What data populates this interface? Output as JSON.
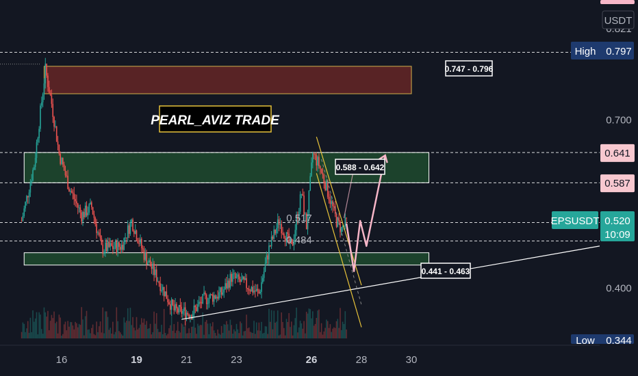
{
  "chart_data": {
    "type": "candlestick",
    "symbol_tag": "EPSUSDT",
    "currency_label": "USDT",
    "watermark": "PEARL_AVIZ TRADE",
    "last_price": "0.520",
    "countdown": "10:09",
    "high_tag": {
      "label": "High",
      "value": "0.797"
    },
    "low_tag": {
      "label": "Low",
      "value": "0.344"
    },
    "top_dashed_value": "0.821",
    "y_ticks": [
      "0.700",
      "0.400"
    ],
    "y_range": [
      0.31,
      0.89
    ],
    "x_ticks": [
      {
        "label": "16",
        "day": 16,
        "bold": false
      },
      {
        "label": "19",
        "day": 19,
        "bold": true
      },
      {
        "label": "21",
        "day": 21,
        "bold": false
      },
      {
        "label": "23",
        "day": 23,
        "bold": false
      },
      {
        "label": "26",
        "day": 26,
        "bold": true
      },
      {
        "label": "28",
        "day": 28,
        "bold": false
      },
      {
        "label": "30",
        "day": 30,
        "bold": false
      }
    ],
    "zones": [
      {
        "label": "0.747 - 0.796",
        "low": 0.747,
        "high": 0.796,
        "color": "#5c2426",
        "border": "#d4b24c",
        "start_day": 15.3,
        "end_day": 30
      },
      {
        "label": "0.588 - 0.642",
        "low": 0.588,
        "high": 0.642,
        "color": "#1f4a2e",
        "border": "#ffffff",
        "start_day": 14.5,
        "end_day": 30.7
      },
      {
        "label": "0.441 - 0.463",
        "low": 0.441,
        "high": 0.463,
        "color": "#1f4a2e",
        "border": "#ffffff",
        "start_day": 14.5,
        "end_day": 30.7
      }
    ],
    "price_tags": [
      {
        "value": "0.641",
        "color": "#f8c8d0",
        "text_color": "#131722"
      },
      {
        "value": "0.587",
        "color": "#f8c8d0",
        "text_color": "#131722"
      }
    ],
    "level_labels": [
      {
        "value": "0.517",
        "color": "#e06c7c"
      },
      {
        "value": "0.484",
        "color": "#e06c7c"
      }
    ],
    "colors": {
      "background": "#131722",
      "up": "#26a69a",
      "down": "#ef5350",
      "trendline": "#ffffff",
      "channel": "#e8c33a",
      "projection": "#f7b6c8",
      "accent_tag": "#26a69a",
      "high_tag": "#1e3a6e"
    }
  }
}
